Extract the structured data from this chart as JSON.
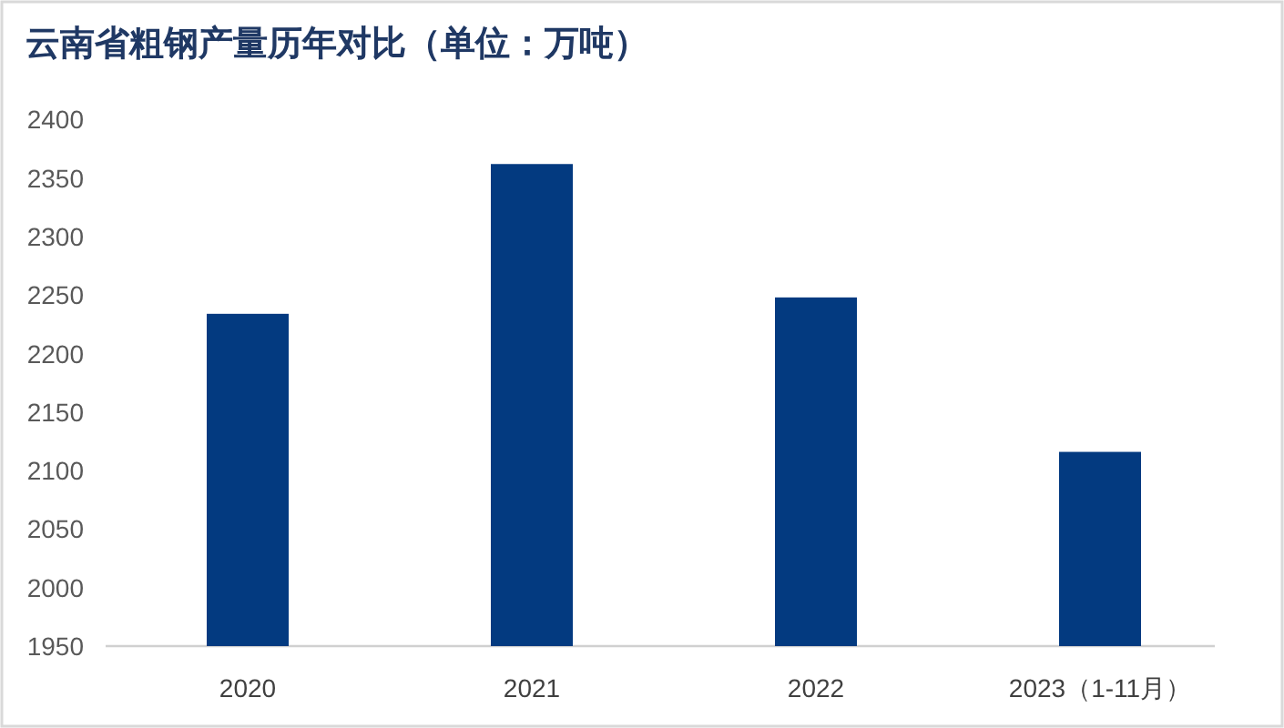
{
  "chart_data": {
    "type": "bar",
    "title": "云南省粗钢产量历年对比（单位：万吨）",
    "categories": [
      "2020",
      "2021",
      "2022",
      "2023（1-11月）"
    ],
    "values": [
      2234,
      2362,
      2248,
      2116
    ],
    "color": "#033a80",
    "ylim": [
      1950,
      2400
    ],
    "yticks": [
      1950,
      2000,
      2050,
      2100,
      2150,
      2200,
      2250,
      2300,
      2350,
      2400
    ]
  }
}
